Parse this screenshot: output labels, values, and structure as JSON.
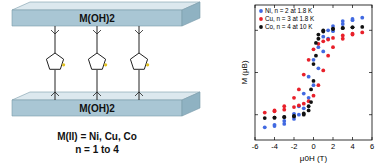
{
  "chart_data": {
    "type": "scatter",
    "x_label": "μ0H (T)",
    "y_label": "M (μB)",
    "xlim": [
      -6,
      6
    ],
    "xticks": [
      -6,
      -4,
      -2,
      0,
      2,
      4,
      6
    ],
    "ylim": [
      -1.6,
      1.6
    ],
    "yticks": [
      -1,
      0,
      1
    ],
    "tick_labels": "x",
    "legend": "upper left",
    "marker": "circle",
    "series": [
      {
        "name": "Ni, n = 2 at 1.8 K",
        "color": "#4169e1",
        "x": [
          -5,
          -4,
          -3,
          -2,
          -1.5,
          -1,
          -0.5,
          0,
          0.5,
          1,
          1.5,
          2,
          3,
          4,
          5,
          4,
          3,
          2,
          1.5,
          1,
          0.5,
          0,
          -0.5,
          -1,
          -1.5,
          -2,
          -3,
          -4
        ],
        "values": [
          -1.3,
          -1.27,
          -1.22,
          -1.1,
          -1.0,
          -0.85,
          -0.6,
          -0.3,
          0.1,
          0.5,
          0.8,
          0.98,
          1.15,
          1.24,
          1.3,
          1.27,
          1.22,
          1.1,
          1.0,
          0.85,
          0.6,
          0.3,
          -0.1,
          -0.5,
          -0.8,
          -0.98,
          -1.15,
          -1.24
        ]
      },
      {
        "name": "Cu, n = 3 at 1.8 K",
        "color": "#e8202a",
        "x": [
          -5,
          -4,
          -3,
          -2,
          -1.5,
          -1,
          -0.5,
          0,
          0.5,
          1,
          1.5,
          2,
          3,
          4,
          5,
          4,
          3,
          2,
          1.5,
          1,
          0.5,
          0,
          -0.5,
          -1,
          -1.5,
          -2,
          -3,
          -4
        ],
        "values": [
          -0.95,
          -0.92,
          -0.88,
          -0.82,
          -0.78,
          -0.74,
          -0.68,
          -0.55,
          -0.3,
          0.05,
          0.4,
          0.6,
          0.8,
          0.9,
          0.95,
          0.92,
          0.88,
          0.82,
          0.78,
          0.74,
          0.68,
          0.55,
          0.3,
          -0.05,
          -0.4,
          -0.6,
          -0.8,
          -0.9
        ]
      },
      {
        "name": "Co, n = 4 at 10 K",
        "color": "#111111",
        "x": [
          -5,
          -4,
          -3,
          -2,
          -1,
          -0.5,
          -0.25,
          0,
          0.25,
          0.5,
          1,
          2,
          3,
          4,
          5,
          4,
          3,
          2,
          1,
          0.5,
          0.25,
          0,
          -0.25,
          -0.5,
          -1,
          -2,
          -3,
          -4
        ],
        "values": [
          -1.08,
          -1.07,
          -1.06,
          -1.04,
          -1.0,
          -0.9,
          -0.7,
          -0.2,
          0.4,
          0.8,
          0.97,
          1.03,
          1.05,
          1.07,
          1.08,
          1.07,
          1.06,
          1.04,
          1.0,
          0.9,
          0.7,
          0.2,
          -0.4,
          -0.8,
          -0.97,
          -1.03,
          -1.05,
          -1.07
        ]
      }
    ]
  },
  "diagram": {
    "layers": [
      "M(OH)2",
      "M(OH)2"
    ],
    "caption": [
      "M(II) = Ni, Cu, Co",
      "n = 1 to 4"
    ]
  }
}
